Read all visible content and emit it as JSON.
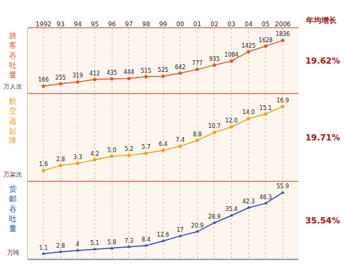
{
  "header": "年均增长",
  "chart_data": [
    {
      "type": "line",
      "title": "旅客吞吐量",
      "ylabel": "万人次",
      "annotations": [
        "19.62%"
      ],
      "categories": [
        "1992",
        "93",
        "94",
        "95",
        "96",
        "97",
        "98",
        "99",
        "00",
        "01",
        "02",
        "03",
        "04",
        "05",
        "2006"
      ],
      "values": [
        166,
        255,
        319,
        412,
        435,
        444,
        515,
        525,
        642,
        777,
        935,
        1084,
        1425,
        1628,
        1836
      ],
      "color": "#e05a2b",
      "marker": "circle",
      "line_style": "solid",
      "data_labels": true,
      "ylim": [
        -100,
        2300
      ],
      "yticks": [],
      "grid": true,
      "tick_labels": "x"
    },
    {
      "type": "line",
      "title": "航空器起降",
      "ylabel": "万架次",
      "annotations": [
        "19.71%"
      ],
      "categories": [
        "1992",
        "93",
        "94",
        "95",
        "96",
        "97",
        "98",
        "99",
        "00",
        "01",
        "02",
        "03",
        "04",
        "05",
        "2006"
      ],
      "values": [
        1.6,
        2.8,
        3.3,
        4.2,
        5.0,
        5.2,
        5.7,
        6.4,
        7.4,
        8.8,
        10.7,
        12.0,
        14.0,
        15.1,
        16.9
      ],
      "value_labels": [
        "1.6",
        "2.8",
        "3.3",
        "4.2",
        "5.0",
        "5.2",
        "5.7",
        "6.4",
        "7.4",
        "8.8",
        "10.7",
        "12.0",
        "14.0",
        "15.1",
        "16.9"
      ],
      "color": "#f0a020",
      "marker": "circle",
      "line_style": "solid",
      "data_labels": true,
      "ylim": [
        -1,
        20
      ],
      "yticks": [],
      "grid": true,
      "tick_labels": false
    },
    {
      "type": "line",
      "title": "货邮吞吐量",
      "ylabel": "万吨",
      "annotations": [
        "35.54%"
      ],
      "categories": [
        "1992",
        "93",
        "94",
        "95",
        "96",
        "97",
        "98",
        "99",
        "00",
        "01",
        "02",
        "03",
        "04",
        "05",
        "2006"
      ],
      "values": [
        1.1,
        2.8,
        4,
        5.1,
        5.8,
        7.3,
        8.4,
        12.6,
        17,
        20.9,
        28.9,
        35.4,
        42.3,
        46.3,
        55.9
      ],
      "color": "#2a4aa8",
      "marker": "triangle-up",
      "line_style": "solid",
      "data_labels": true,
      "ylim": [
        -4,
        66
      ],
      "yticks": [],
      "grid": true,
      "tick_labels": false
    }
  ]
}
